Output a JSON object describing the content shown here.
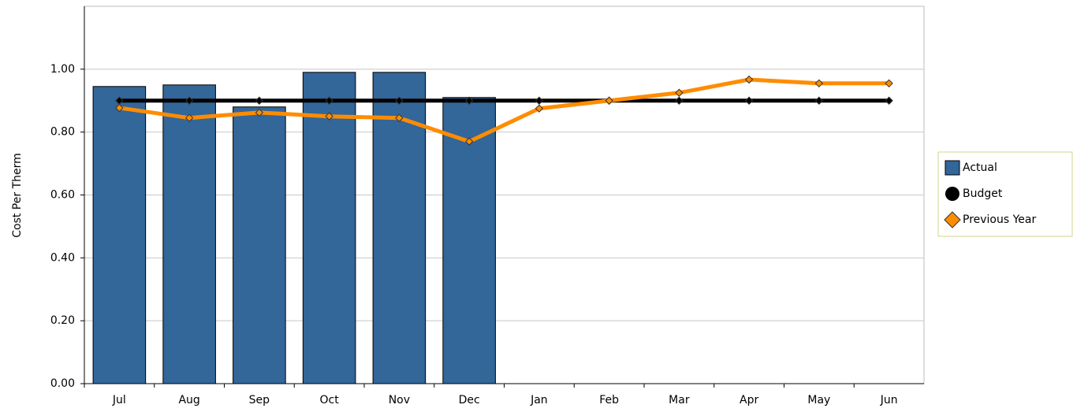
{
  "chart_data": {
    "type": "bar",
    "y_label": "Cost Per Therm",
    "categories": [
      "Jul",
      "Aug",
      "Sep",
      "Oct",
      "Nov",
      "Dec",
      "Jan",
      "Feb",
      "Mar",
      "Apr",
      "May",
      "Jun"
    ],
    "series": [
      {
        "name": "Actual",
        "type": "bar",
        "color": "#336699",
        "values": [
          0.945,
          0.95,
          0.88,
          0.99,
          0.99,
          0.91,
          null,
          null,
          null,
          null,
          null,
          null
        ]
      },
      {
        "name": "Budget",
        "type": "line",
        "color": "#000000",
        "values": [
          0.9,
          0.9,
          0.9,
          0.9,
          0.9,
          0.9,
          0.9,
          0.9,
          0.9,
          0.9,
          0.9,
          0.9
        ]
      },
      {
        "name": "Previous Year",
        "type": "line",
        "color": "#ff8c00",
        "values": [
          0.877,
          0.845,
          0.862,
          0.85,
          0.845,
          0.77,
          0.875,
          0.9,
          0.925,
          0.967,
          0.955,
          0.955
        ]
      }
    ],
    "ylim": [
      0,
      1.2
    ],
    "yticks": [
      {
        "value": 0,
        "label": "0.00"
      },
      {
        "value": 0.2,
        "label": "0.20"
      },
      {
        "value": 0.4,
        "label": "0.40"
      },
      {
        "value": 0.6,
        "label": "0.60"
      },
      {
        "value": 0.8,
        "label": "0.80"
      },
      {
        "value": 1,
        "label": "1.00"
      }
    ],
    "grid": true,
    "legend": "right"
  }
}
